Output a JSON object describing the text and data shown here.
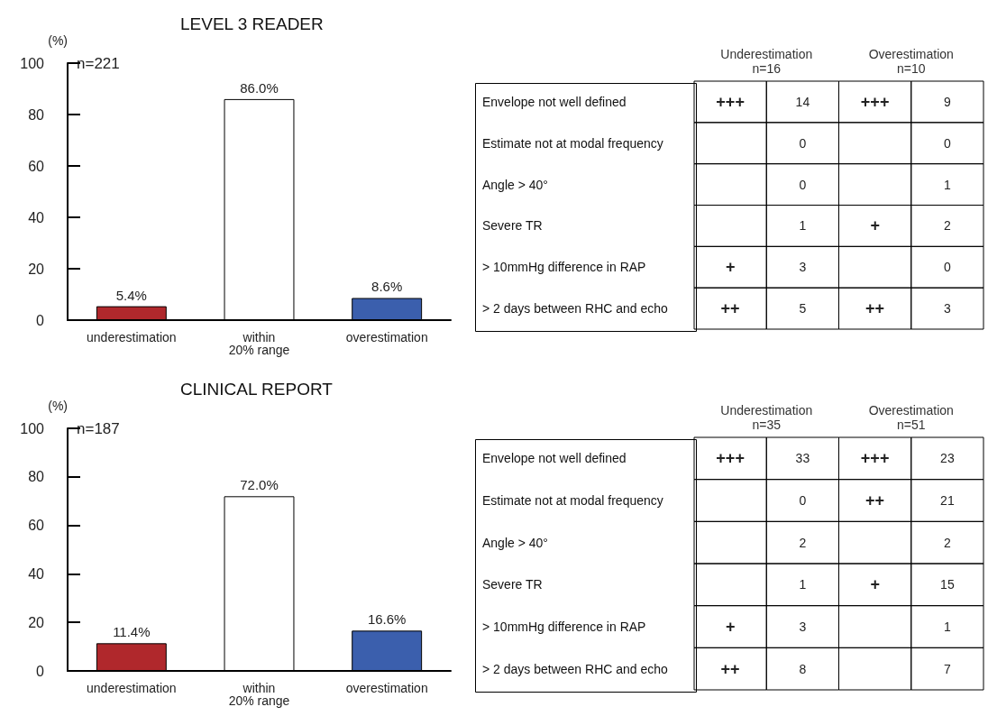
{
  "chart_data": [
    {
      "type": "bar",
      "title": "LEVEL 3 READER",
      "ylabel": "(%)",
      "annotations": [
        "n=221"
      ],
      "categories": [
        "underestimation",
        "within\n20% range",
        "overestimation"
      ],
      "values": [
        5.4,
        86.0,
        8.6
      ],
      "colors": [
        "#b0282c",
        "#ffffff",
        "#3b5fad"
      ],
      "value_labels": [
        "5.4%",
        "86.0%",
        "8.6%"
      ],
      "ylim": [
        0,
        100
      ],
      "yticks": [
        0,
        20,
        40,
        60,
        80,
        100
      ],
      "grid": false
    },
    {
      "type": "heatmap",
      "categories": [
        "Underestimation\nn=16",
        null,
        "Overestimation\nn=10",
        null
      ],
      "y_categories": [
        "Envelope not well defined",
        "Estimate not at modal frequency",
        "Angle > 40°",
        "Severe TR",
        "> 10mmHg difference in RAP",
        "> 2 days between RHC and echo"
      ],
      "cells": [
        [
          null,
          null,
          null,
          null
        ],
        [
          null,
          null,
          null,
          null
        ],
        [
          null,
          null,
          null,
          null
        ],
        [
          null,
          null,
          null,
          null
        ],
        [
          null,
          null,
          null,
          null
        ],
        [
          null,
          null,
          null,
          null
        ]
      ],
      "cell_labels": [
        [
          "+++",
          "14",
          "+++",
          "9"
        ],
        [
          null,
          "0",
          null,
          "0"
        ],
        [
          null,
          "0",
          null,
          "1"
        ],
        [
          null,
          "1",
          "+",
          "2"
        ],
        [
          "+",
          "3",
          null,
          "0"
        ],
        [
          "++",
          "5",
          "++",
          "3"
        ]
      ]
    },
    {
      "type": "bar",
      "title": "CLINICAL REPORT",
      "ylabel": "(%)",
      "annotations": [
        "n=187"
      ],
      "categories": [
        "underestimation",
        "within\n20% range",
        "overestimation"
      ],
      "values": [
        11.4,
        72.0,
        16.6
      ],
      "colors": [
        "#b0282c",
        "#ffffff",
        "#3b5fad"
      ],
      "value_labels": [
        "11.4%",
        "72.0%",
        "16.6%"
      ],
      "ylim": [
        0,
        100
      ],
      "yticks": [
        0,
        20,
        40,
        60,
        80,
        100
      ],
      "grid": false
    },
    {
      "type": "heatmap",
      "categories": [
        "Underestimation\nn=35",
        null,
        "Overestimation\nn=51",
        null
      ],
      "y_categories": [
        "Envelope not well defined",
        "Estimate not at modal frequency",
        "Angle > 40°",
        "Severe TR",
        "> 10mmHg difference in RAP",
        "> 2 days between RHC and echo"
      ],
      "cells": [
        [
          null,
          null,
          null,
          null
        ],
        [
          null,
          null,
          null,
          null
        ],
        [
          null,
          null,
          null,
          null
        ],
        [
          null,
          null,
          null,
          null
        ],
        [
          null,
          null,
          null,
          null
        ],
        [
          null,
          null,
          null,
          null
        ]
      ],
      "cell_labels": [
        [
          "+++",
          "33",
          "+++",
          "23"
        ],
        [
          null,
          "0",
          "++",
          "21"
        ],
        [
          null,
          "2",
          null,
          "2"
        ],
        [
          null,
          "1",
          "+",
          "15"
        ],
        [
          "+",
          "3",
          null,
          "1"
        ],
        [
          "++",
          "8",
          null,
          "7"
        ]
      ]
    }
  ]
}
